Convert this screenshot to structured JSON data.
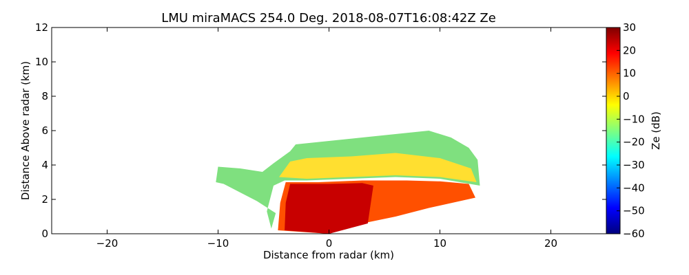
{
  "chart_data": {
    "type": "heatmap",
    "title": "LMU miraMACS 254.0 Deg. 2018-08-07T16:08:42Z  Ze",
    "xlabel": "Distance from radar (km)",
    "ylabel": "Distance Above radar  (km)",
    "colorbar_label": "Ze (dB)",
    "xlim": [
      -25,
      25
    ],
    "ylim": [
      0,
      12
    ],
    "clim": [
      -60,
      30
    ],
    "x_ticks": [
      -20,
      -10,
      0,
      10,
      20
    ],
    "x_tick_labels": [
      "−20",
      "−10",
      "0",
      "10",
      "20"
    ],
    "y_ticks": [
      0,
      2,
      4,
      6,
      8,
      10,
      12
    ],
    "y_tick_labels": [
      "0",
      "2",
      "4",
      "6",
      "8",
      "10",
      "12"
    ],
    "colorbar_ticks": [
      -60,
      -50,
      -40,
      -30,
      -20,
      -10,
      0,
      10,
      20,
      30
    ],
    "colorbar_tick_labels": [
      "−60",
      "−50",
      "−40",
      "−30",
      "−20",
      "−10",
      "0",
      "10",
      "20",
      "30"
    ],
    "colormap": [
      "#00007f",
      "#0000ff",
      "#007fff",
      "#00ffff",
      "#7fff7f",
      "#ffff00",
      "#ff7f00",
      "#ff0000",
      "#7f0000"
    ],
    "echo_regions": [
      {
        "name": "upper-cloud-layer",
        "ze_db": -20,
        "color": "#7fe07f",
        "outline_km": [
          [
            -10.2,
            3.0
          ],
          [
            -10.0,
            3.9
          ],
          [
            -8.0,
            3.8
          ],
          [
            -6.0,
            3.6
          ],
          [
            -5.0,
            4.1
          ],
          [
            -3.5,
            4.8
          ],
          [
            -3.0,
            5.2
          ],
          [
            0,
            5.4
          ],
          [
            3,
            5.6
          ],
          [
            6,
            5.8
          ],
          [
            9,
            6.0
          ],
          [
            11,
            5.6
          ],
          [
            12.6,
            5.0
          ],
          [
            13.4,
            4.3
          ],
          [
            13.6,
            2.8
          ],
          [
            10,
            3.2
          ],
          [
            6,
            3.3
          ],
          [
            2,
            3.2
          ],
          [
            -2,
            3.1
          ],
          [
            -4,
            3.1
          ],
          [
            -5,
            2.8
          ],
          [
            -5.6,
            1.3
          ],
          [
            -5.2,
            0.3
          ],
          [
            -4.8,
            1.2
          ],
          [
            -6.5,
            1.9
          ],
          [
            -8.0,
            2.4
          ],
          [
            -9.5,
            2.9
          ]
        ]
      },
      {
        "name": "layer-core",
        "ze_db": 0,
        "color": "#ffdf30",
        "outline_km": [
          [
            -4.5,
            3.3
          ],
          [
            -3.5,
            4.2
          ],
          [
            -2,
            4.4
          ],
          [
            2,
            4.5
          ],
          [
            6,
            4.7
          ],
          [
            10,
            4.4
          ],
          [
            12.8,
            3.8
          ],
          [
            13.3,
            3.0
          ],
          [
            10,
            3.3
          ],
          [
            6,
            3.4
          ],
          [
            2,
            3.3
          ],
          [
            -2,
            3.2
          ]
        ]
      },
      {
        "name": "precipitation-shaft",
        "ze_db": 15,
        "color": "#ff5000",
        "outline_km": [
          [
            -3.9,
            3.0
          ],
          [
            -1,
            3.0
          ],
          [
            3,
            3.1
          ],
          [
            7,
            3.1
          ],
          [
            10,
            3.05
          ],
          [
            12.6,
            2.9
          ],
          [
            13.2,
            2.1
          ],
          [
            9,
            1.5
          ],
          [
            6,
            1.0
          ],
          [
            3,
            0.6
          ],
          [
            0,
            0.0
          ],
          [
            -4.6,
            0.2
          ],
          [
            -4.4,
            1.8
          ]
        ]
      },
      {
        "name": "precipitation-core",
        "ze_db": 25,
        "color": "#c80000",
        "outline_km": [
          [
            -3.5,
            2.9
          ],
          [
            0,
            2.9
          ],
          [
            3,
            2.95
          ],
          [
            4,
            2.8
          ],
          [
            3.5,
            0.6
          ],
          [
            0,
            0.0
          ],
          [
            -4.0,
            0.2
          ],
          [
            -3.9,
            1.8
          ]
        ]
      }
    ]
  }
}
